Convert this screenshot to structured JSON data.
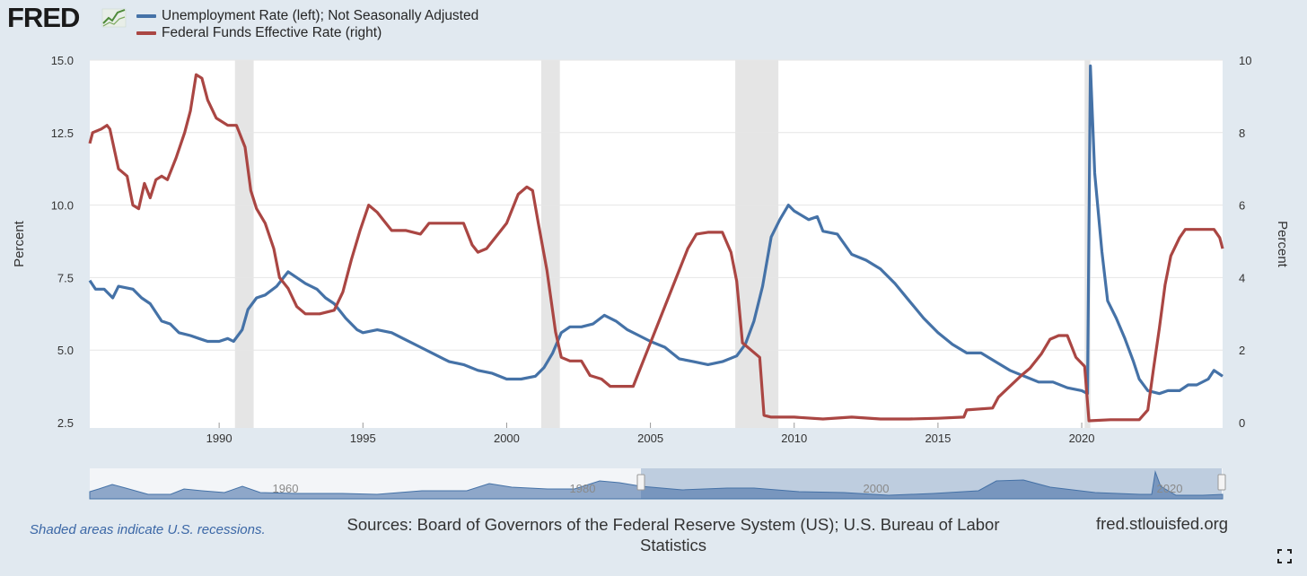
{
  "logo": {
    "text": "FRED",
    "icon": "line-chart-icon"
  },
  "legend": [
    {
      "label": "Unemployment Rate (left); Not Seasonally Adjusted",
      "color": "#4572a7"
    },
    {
      "label": "Federal Funds Effective Rate (right)",
      "color": "#aa4643"
    }
  ],
  "footer": {
    "recession_note": "Shaded areas indicate U.S. recessions.",
    "sources": "Sources: Board of Governors of the Federal Reserve System (US); U.S. Bureau of Labor Statistics",
    "site": "fred.stlouisfed.org"
  },
  "navigator": {
    "labels": [
      "1960",
      "1980",
      "2000",
      "2020"
    ]
  },
  "chart_data": {
    "type": "line",
    "title": "",
    "xlim": [
      1985.5,
      2024.9
    ],
    "x_ticks": [
      "1990",
      "1995",
      "2000",
      "2005",
      "2010",
      "2015",
      "2020"
    ],
    "y_left": {
      "label": "Percent",
      "min": 2.5,
      "max": 15.0,
      "ticks": [
        "2.5",
        "5.0",
        "7.5",
        "10.0",
        "12.5",
        "15.0"
      ]
    },
    "y_right": {
      "label": "Percent",
      "min": 0,
      "max": 10,
      "ticks": [
        "0",
        "2",
        "4",
        "6",
        "8",
        "10"
      ]
    },
    "grid": true,
    "recessions": [
      [
        1990.55,
        1991.2
      ],
      [
        2001.2,
        2001.85
      ],
      [
        2007.95,
        2009.45
      ],
      [
        2020.1,
        2020.3
      ]
    ],
    "series": [
      {
        "name": "Unemployment Rate (left); Not Seasonally Adjusted",
        "axis": "left",
        "color": "#4572a7",
        "points": [
          [
            1985.5,
            7.4
          ],
          [
            1985.7,
            7.1
          ],
          [
            1986.0,
            7.1
          ],
          [
            1986.3,
            6.8
          ],
          [
            1986.5,
            7.2
          ],
          [
            1987.0,
            7.1
          ],
          [
            1987.3,
            6.8
          ],
          [
            1987.6,
            6.6
          ],
          [
            1988.0,
            6.0
          ],
          [
            1988.3,
            5.9
          ],
          [
            1988.6,
            5.6
          ],
          [
            1989.0,
            5.5
          ],
          [
            1989.3,
            5.4
          ],
          [
            1989.6,
            5.3
          ],
          [
            1990.0,
            5.3
          ],
          [
            1990.3,
            5.4
          ],
          [
            1990.5,
            5.3
          ],
          [
            1990.8,
            5.7
          ],
          [
            1991.0,
            6.4
          ],
          [
            1991.3,
            6.8
          ],
          [
            1991.6,
            6.9
          ],
          [
            1992.0,
            7.2
          ],
          [
            1992.4,
            7.7
          ],
          [
            1992.7,
            7.5
          ],
          [
            1993.0,
            7.3
          ],
          [
            1993.4,
            7.1
          ],
          [
            1993.7,
            6.8
          ],
          [
            1994.0,
            6.6
          ],
          [
            1994.4,
            6.1
          ],
          [
            1994.8,
            5.7
          ],
          [
            1995.0,
            5.6
          ],
          [
            1995.5,
            5.7
          ],
          [
            1996.0,
            5.6
          ],
          [
            1996.4,
            5.4
          ],
          [
            1997.0,
            5.1
          ],
          [
            1997.4,
            4.9
          ],
          [
            1997.8,
            4.7
          ],
          [
            1998.0,
            4.6
          ],
          [
            1998.5,
            4.5
          ],
          [
            1999.0,
            4.3
          ],
          [
            1999.5,
            4.2
          ],
          [
            2000.0,
            4.0
          ],
          [
            2000.5,
            4.0
          ],
          [
            2001.0,
            4.1
          ],
          [
            2001.3,
            4.4
          ],
          [
            2001.6,
            4.9
          ],
          [
            2001.9,
            5.6
          ],
          [
            2002.2,
            5.8
          ],
          [
            2002.6,
            5.8
          ],
          [
            2003.0,
            5.9
          ],
          [
            2003.4,
            6.2
          ],
          [
            2003.8,
            6.0
          ],
          [
            2004.2,
            5.7
          ],
          [
            2004.6,
            5.5
          ],
          [
            2005.0,
            5.3
          ],
          [
            2005.5,
            5.1
          ],
          [
            2006.0,
            4.7
          ],
          [
            2006.5,
            4.6
          ],
          [
            2007.0,
            4.5
          ],
          [
            2007.5,
            4.6
          ],
          [
            2008.0,
            4.8
          ],
          [
            2008.3,
            5.2
          ],
          [
            2008.6,
            6.0
          ],
          [
            2008.9,
            7.2
          ],
          [
            2009.2,
            8.9
          ],
          [
            2009.5,
            9.5
          ],
          [
            2009.8,
            10.0
          ],
          [
            2010.0,
            9.8
          ],
          [
            2010.5,
            9.5
          ],
          [
            2010.8,
            9.6
          ],
          [
            2011.0,
            9.1
          ],
          [
            2011.5,
            9.0
          ],
          [
            2012.0,
            8.3
          ],
          [
            2012.5,
            8.1
          ],
          [
            2013.0,
            7.8
          ],
          [
            2013.5,
            7.3
          ],
          [
            2014.0,
            6.7
          ],
          [
            2014.5,
            6.1
          ],
          [
            2015.0,
            5.6
          ],
          [
            2015.5,
            5.2
          ],
          [
            2016.0,
            4.9
          ],
          [
            2016.5,
            4.9
          ],
          [
            2017.0,
            4.6
          ],
          [
            2017.5,
            4.3
          ],
          [
            2018.0,
            4.1
          ],
          [
            2018.5,
            3.9
          ],
          [
            2019.0,
            3.9
          ],
          [
            2019.5,
            3.7
          ],
          [
            2020.0,
            3.6
          ],
          [
            2020.2,
            3.5
          ],
          [
            2020.3,
            14.8
          ],
          [
            2020.45,
            11.1
          ],
          [
            2020.7,
            8.4
          ],
          [
            2020.9,
            6.7
          ],
          [
            2021.2,
            6.1
          ],
          [
            2021.5,
            5.4
          ],
          [
            2021.8,
            4.6
          ],
          [
            2022.0,
            4.0
          ],
          [
            2022.3,
            3.6
          ],
          [
            2022.7,
            3.5
          ],
          [
            2023.0,
            3.6
          ],
          [
            2023.4,
            3.6
          ],
          [
            2023.7,
            3.8
          ],
          [
            2024.0,
            3.8
          ],
          [
            2024.4,
            4.0
          ],
          [
            2024.6,
            4.3
          ],
          [
            2024.9,
            4.1
          ]
        ]
      },
      {
        "name": "Federal Funds Effective Rate (right)",
        "axis": "right",
        "color": "#aa4643",
        "points": [
          [
            1985.5,
            7.7
          ],
          [
            1985.6,
            8.0
          ],
          [
            1985.9,
            8.1
          ],
          [
            1986.1,
            8.2
          ],
          [
            1986.2,
            8.1
          ],
          [
            1986.5,
            7.0
          ],
          [
            1986.8,
            6.8
          ],
          [
            1987.0,
            6.0
          ],
          [
            1987.2,
            5.9
          ],
          [
            1987.4,
            6.6
          ],
          [
            1987.6,
            6.2
          ],
          [
            1987.8,
            6.7
          ],
          [
            1988.0,
            6.8
          ],
          [
            1988.2,
            6.7
          ],
          [
            1988.5,
            7.3
          ],
          [
            1988.8,
            8.0
          ],
          [
            1989.0,
            8.6
          ],
          [
            1989.2,
            9.6
          ],
          [
            1989.4,
            9.5
          ],
          [
            1989.6,
            8.9
          ],
          [
            1989.9,
            8.4
          ],
          [
            1990.3,
            8.2
          ],
          [
            1990.6,
            8.2
          ],
          [
            1990.9,
            7.6
          ],
          [
            1991.1,
            6.4
          ],
          [
            1991.3,
            5.9
          ],
          [
            1991.6,
            5.5
          ],
          [
            1991.9,
            4.8
          ],
          [
            1992.1,
            4.0
          ],
          [
            1992.4,
            3.7
          ],
          [
            1992.7,
            3.2
          ],
          [
            1993.0,
            3.0
          ],
          [
            1993.5,
            3.0
          ],
          [
            1994.0,
            3.1
          ],
          [
            1994.3,
            3.6
          ],
          [
            1994.6,
            4.5
          ],
          [
            1994.9,
            5.3
          ],
          [
            1995.2,
            6.0
          ],
          [
            1995.5,
            5.8
          ],
          [
            1996.0,
            5.3
          ],
          [
            1996.5,
            5.3
          ],
          [
            1997.0,
            5.2
          ],
          [
            1997.3,
            5.5
          ],
          [
            1997.8,
            5.5
          ],
          [
            1998.2,
            5.5
          ],
          [
            1998.5,
            5.5
          ],
          [
            1998.8,
            4.9
          ],
          [
            1999.0,
            4.7
          ],
          [
            1999.3,
            4.8
          ],
          [
            1999.6,
            5.1
          ],
          [
            2000.0,
            5.5
          ],
          [
            2000.4,
            6.3
          ],
          [
            2000.7,
            6.5
          ],
          [
            2000.9,
            6.4
          ],
          [
            2001.1,
            5.5
          ],
          [
            2001.4,
            4.2
          ],
          [
            2001.7,
            2.5
          ],
          [
            2001.9,
            1.8
          ],
          [
            2002.2,
            1.7
          ],
          [
            2002.6,
            1.7
          ],
          [
            2002.9,
            1.3
          ],
          [
            2003.3,
            1.2
          ],
          [
            2003.6,
            1.0
          ],
          [
            2004.0,
            1.0
          ],
          [
            2004.4,
            1.0
          ],
          [
            2004.6,
            1.4
          ],
          [
            2004.9,
            2.0
          ],
          [
            2005.3,
            2.8
          ],
          [
            2005.6,
            3.4
          ],
          [
            2005.9,
            4.0
          ],
          [
            2006.3,
            4.8
          ],
          [
            2006.6,
            5.2
          ],
          [
            2007.0,
            5.25
          ],
          [
            2007.5,
            5.25
          ],
          [
            2007.8,
            4.7
          ],
          [
            2008.0,
            3.9
          ],
          [
            2008.2,
            2.2
          ],
          [
            2008.5,
            2.0
          ],
          [
            2008.8,
            1.8
          ],
          [
            2008.95,
            0.2
          ],
          [
            2009.2,
            0.15
          ],
          [
            2010.0,
            0.15
          ],
          [
            2011.0,
            0.1
          ],
          [
            2012.0,
            0.15
          ],
          [
            2013.0,
            0.1
          ],
          [
            2014.0,
            0.1
          ],
          [
            2015.0,
            0.12
          ],
          [
            2015.9,
            0.15
          ],
          [
            2016.0,
            0.35
          ],
          [
            2016.9,
            0.4
          ],
          [
            2017.1,
            0.7
          ],
          [
            2017.5,
            1.0
          ],
          [
            2017.9,
            1.3
          ],
          [
            2018.2,
            1.5
          ],
          [
            2018.6,
            1.9
          ],
          [
            2018.9,
            2.3
          ],
          [
            2019.2,
            2.4
          ],
          [
            2019.5,
            2.4
          ],
          [
            2019.8,
            1.8
          ],
          [
            2020.1,
            1.55
          ],
          [
            2020.25,
            0.05
          ],
          [
            2021.0,
            0.08
          ],
          [
            2022.0,
            0.08
          ],
          [
            2022.3,
            0.35
          ],
          [
            2022.5,
            1.5
          ],
          [
            2022.7,
            2.6
          ],
          [
            2022.9,
            3.8
          ],
          [
            2023.1,
            4.6
          ],
          [
            2023.4,
            5.1
          ],
          [
            2023.6,
            5.33
          ],
          [
            2024.0,
            5.33
          ],
          [
            2024.6,
            5.33
          ],
          [
            2024.8,
            5.1
          ],
          [
            2024.9,
            4.8
          ]
        ]
      }
    ]
  }
}
